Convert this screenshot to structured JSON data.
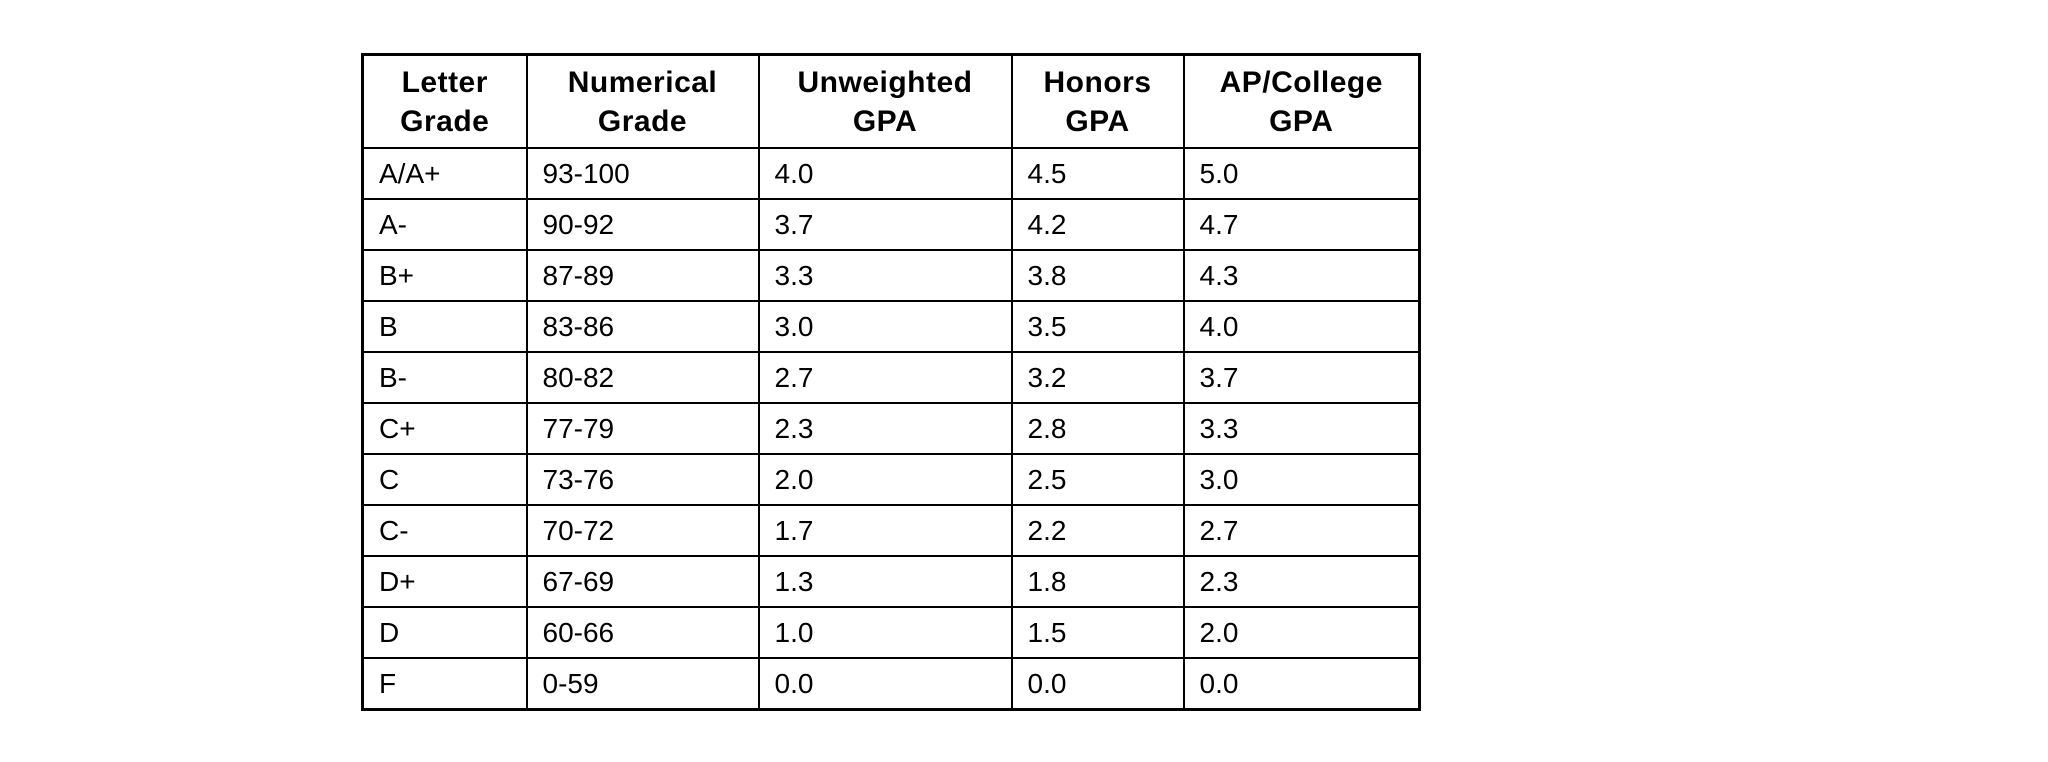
{
  "colors": {
    "page_background": "#ffffff",
    "table_border": "#000000",
    "text": "#000000"
  },
  "ui": {
    "header_lines": [
      "Letter\nGrade",
      "Numerical\nGrade",
      "Unweighted\nGPA",
      "Honors\nGPA",
      "AP/College\nGPA"
    ]
  },
  "chart_data": {
    "type": "table",
    "columns": [
      "Letter Grade",
      "Numerical Grade",
      "Unweighted GPA",
      "Honors GPA",
      "AP/College GPA"
    ],
    "rows": [
      [
        "A/A+",
        "93-100",
        "4.0",
        "4.5",
        "5.0"
      ],
      [
        "A-",
        "90-92",
        "3.7",
        "4.2",
        "4.7"
      ],
      [
        "B+",
        "87-89",
        "3.3",
        "3.8",
        "4.3"
      ],
      [
        "B",
        "83-86",
        "3.0",
        "3.5",
        "4.0"
      ],
      [
        "B-",
        "80-82",
        "2.7",
        "3.2",
        "3.7"
      ],
      [
        "C+",
        "77-79",
        "2.3",
        "2.8",
        "3.3"
      ],
      [
        "C",
        "73-76",
        "2.0",
        "2.5",
        "3.0"
      ],
      [
        "C-",
        "70-72",
        "1.7",
        "2.2",
        "2.7"
      ],
      [
        "D+",
        "67-69",
        "1.3",
        "1.8",
        "2.3"
      ],
      [
        "D",
        "60-66",
        "1.0",
        "1.5",
        "2.0"
      ],
      [
        "F",
        "0-59",
        "0.0",
        "0.0",
        "0.0"
      ]
    ],
    "layout": {
      "grid": true,
      "header_bold": true,
      "header_align": "center",
      "body_align": "left"
    }
  }
}
